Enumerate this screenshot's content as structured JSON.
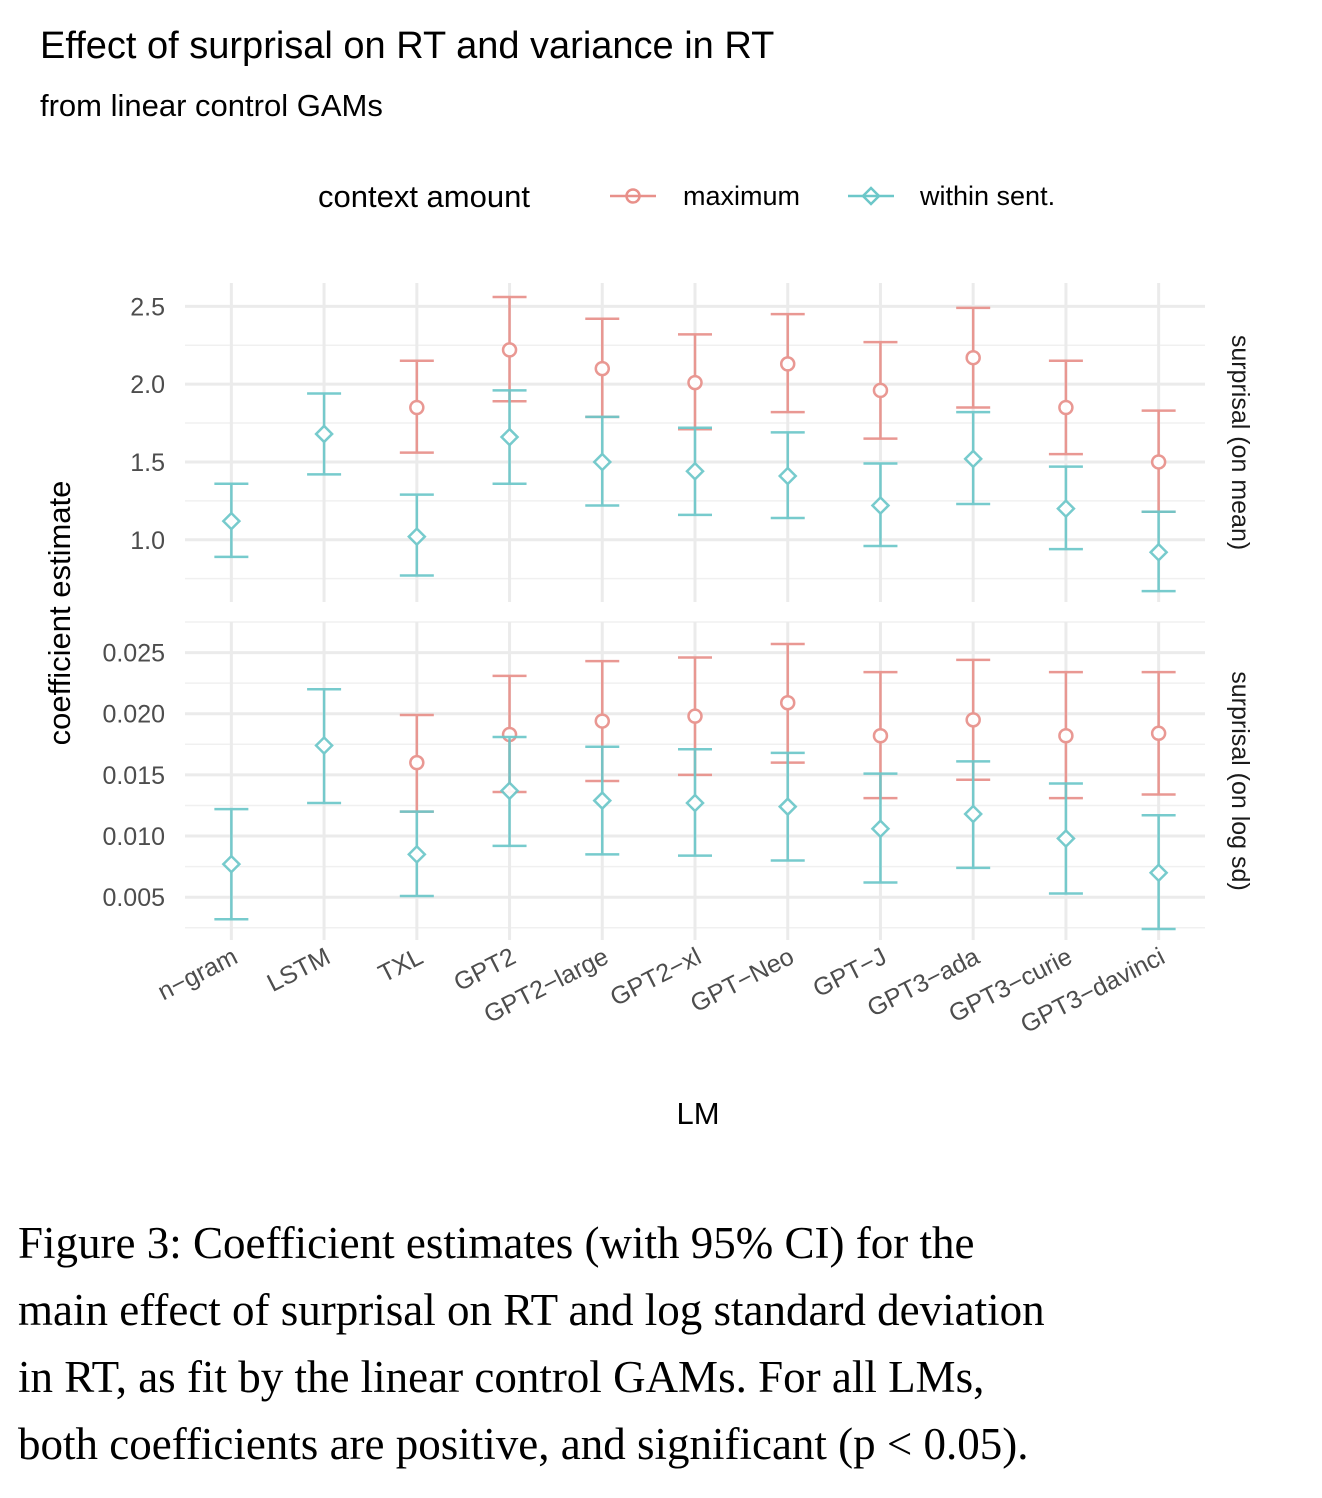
{
  "chart_data": {
    "type": "errorbar",
    "title": "Effect of surprisal on RT and variance in RT",
    "subtitle": "from linear control GAMs",
    "xlabel": "LM",
    "ylabel": "coefficient estimate",
    "legend": {
      "title": "context amount",
      "placement": "top",
      "entries": [
        {
          "name": "maximum",
          "color": "#E8908A",
          "shape": "circle"
        },
        {
          "name": "within sent.",
          "color": "#6CC7C9",
          "shape": "diamond"
        }
      ]
    },
    "categories": [
      "n−gram",
      "LSTM",
      "TXL",
      "GPT2",
      "GPT2−large",
      "GPT2−xl",
      "GPT−Neo",
      "GPT−J",
      "GPT3−ada",
      "GPT3−curie",
      "GPT3−davinci"
    ],
    "grid": true,
    "panels": [
      {
        "strip": "surprisal (on mean)",
        "ylim": [
          0.6,
          2.65
        ],
        "yticks": [
          1.0,
          1.5,
          2.0,
          2.5
        ],
        "ytick_labels": [
          "1.0",
          "1.5",
          "2.0",
          "2.5"
        ],
        "series": [
          {
            "name": "maximum",
            "points": [
              {
                "x": "TXL",
                "y": 1.85,
                "lo": 1.56,
                "hi": 2.15
              },
              {
                "x": "GPT2",
                "y": 2.22,
                "lo": 1.89,
                "hi": 2.56
              },
              {
                "x": "GPT2−large",
                "y": 2.1,
                "lo": 1.79,
                "hi": 2.42
              },
              {
                "x": "GPT2−xl",
                "y": 2.01,
                "lo": 1.71,
                "hi": 2.32
              },
              {
                "x": "GPT−Neo",
                "y": 2.13,
                "lo": 1.82,
                "hi": 2.45
              },
              {
                "x": "GPT−J",
                "y": 1.96,
                "lo": 1.65,
                "hi": 2.27
              },
              {
                "x": "GPT3−ada",
                "y": 2.17,
                "lo": 1.85,
                "hi": 2.49
              },
              {
                "x": "GPT3−curie",
                "y": 1.85,
                "lo": 1.55,
                "hi": 2.15
              },
              {
                "x": "GPT3−davinci",
                "y": 1.5,
                "lo": 1.18,
                "hi": 1.83
              }
            ]
          },
          {
            "name": "within sent.",
            "points": [
              {
                "x": "n−gram",
                "y": 1.12,
                "lo": 0.89,
                "hi": 1.36
              },
              {
                "x": "LSTM",
                "y": 1.68,
                "lo": 1.42,
                "hi": 1.94
              },
              {
                "x": "TXL",
                "y": 1.02,
                "lo": 0.77,
                "hi": 1.29
              },
              {
                "x": "GPT2",
                "y": 1.66,
                "lo": 1.36,
                "hi": 1.96
              },
              {
                "x": "GPT2−large",
                "y": 1.5,
                "lo": 1.22,
                "hi": 1.79
              },
              {
                "x": "GPT2−xl",
                "y": 1.44,
                "lo": 1.16,
                "hi": 1.72
              },
              {
                "x": "GPT−Neo",
                "y": 1.41,
                "lo": 1.14,
                "hi": 1.69
              },
              {
                "x": "GPT−J",
                "y": 1.22,
                "lo": 0.96,
                "hi": 1.49
              },
              {
                "x": "GPT3−ada",
                "y": 1.52,
                "lo": 1.23,
                "hi": 1.82
              },
              {
                "x": "GPT3−curie",
                "y": 1.2,
                "lo": 0.94,
                "hi": 1.47
              },
              {
                "x": "GPT3−davinci",
                "y": 0.92,
                "lo": 0.67,
                "hi": 1.18
              }
            ]
          }
        ]
      },
      {
        "strip": "surprisal (on log sd)",
        "ylim": [
          0.0015,
          0.0275
        ],
        "yticks": [
          0.005,
          0.01,
          0.015,
          0.02,
          0.025
        ],
        "ytick_labels": [
          "0.005",
          "0.010",
          "0.015",
          "0.020",
          "0.025"
        ],
        "series": [
          {
            "name": "maximum",
            "points": [
              {
                "x": "TXL",
                "y": 0.016,
                "lo": 0.012,
                "hi": 0.0199
              },
              {
                "x": "GPT2",
                "y": 0.0183,
                "lo": 0.0136,
                "hi": 0.0231
              },
              {
                "x": "GPT2−large",
                "y": 0.0194,
                "lo": 0.0145,
                "hi": 0.0243
              },
              {
                "x": "GPT2−xl",
                "y": 0.0198,
                "lo": 0.015,
                "hi": 0.0246
              },
              {
                "x": "GPT−Neo",
                "y": 0.0209,
                "lo": 0.016,
                "hi": 0.0257
              },
              {
                "x": "GPT−J",
                "y": 0.0182,
                "lo": 0.0131,
                "hi": 0.0234
              },
              {
                "x": "GPT3−ada",
                "y": 0.0195,
                "lo": 0.0146,
                "hi": 0.0244
              },
              {
                "x": "GPT3−curie",
                "y": 0.0182,
                "lo": 0.0131,
                "hi": 0.0234
              },
              {
                "x": "GPT3−davinci",
                "y": 0.0184,
                "lo": 0.0134,
                "hi": 0.0234
              }
            ]
          },
          {
            "name": "within sent.",
            "points": [
              {
                "x": "n−gram",
                "y": 0.0077,
                "lo": 0.0032,
                "hi": 0.0122
              },
              {
                "x": "LSTM",
                "y": 0.0174,
                "lo": 0.0127,
                "hi": 0.022
              },
              {
                "x": "TXL",
                "y": 0.0085,
                "lo": 0.0051,
                "hi": 0.012
              },
              {
                "x": "GPT2",
                "y": 0.0137,
                "lo": 0.0092,
                "hi": 0.0181
              },
              {
                "x": "GPT2−large",
                "y": 0.0129,
                "lo": 0.0085,
                "hi": 0.0173
              },
              {
                "x": "GPT2−xl",
                "y": 0.0127,
                "lo": 0.0084,
                "hi": 0.0171
              },
              {
                "x": "GPT−Neo",
                "y": 0.0124,
                "lo": 0.008,
                "hi": 0.0168
              },
              {
                "x": "GPT−J",
                "y": 0.0106,
                "lo": 0.0062,
                "hi": 0.0151
              },
              {
                "x": "GPT3−ada",
                "y": 0.0118,
                "lo": 0.0074,
                "hi": 0.0161
              },
              {
                "x": "GPT3−curie",
                "y": 0.0098,
                "lo": 0.0053,
                "hi": 0.0143
              },
              {
                "x": "GPT3−davinci",
                "y": 0.007,
                "lo": 0.0024,
                "hi": 0.0117
              }
            ]
          }
        ]
      }
    ]
  },
  "caption": {
    "lines": [
      "Figure 3: Coefficient estimates (with 95% CI) for the",
      "main effect of surprisal on RT and log standard deviation",
      "in RT, as fit by the linear control GAMs. For all LMs,",
      "both coefficients are positive, and significant (p < 0.05)."
    ]
  }
}
